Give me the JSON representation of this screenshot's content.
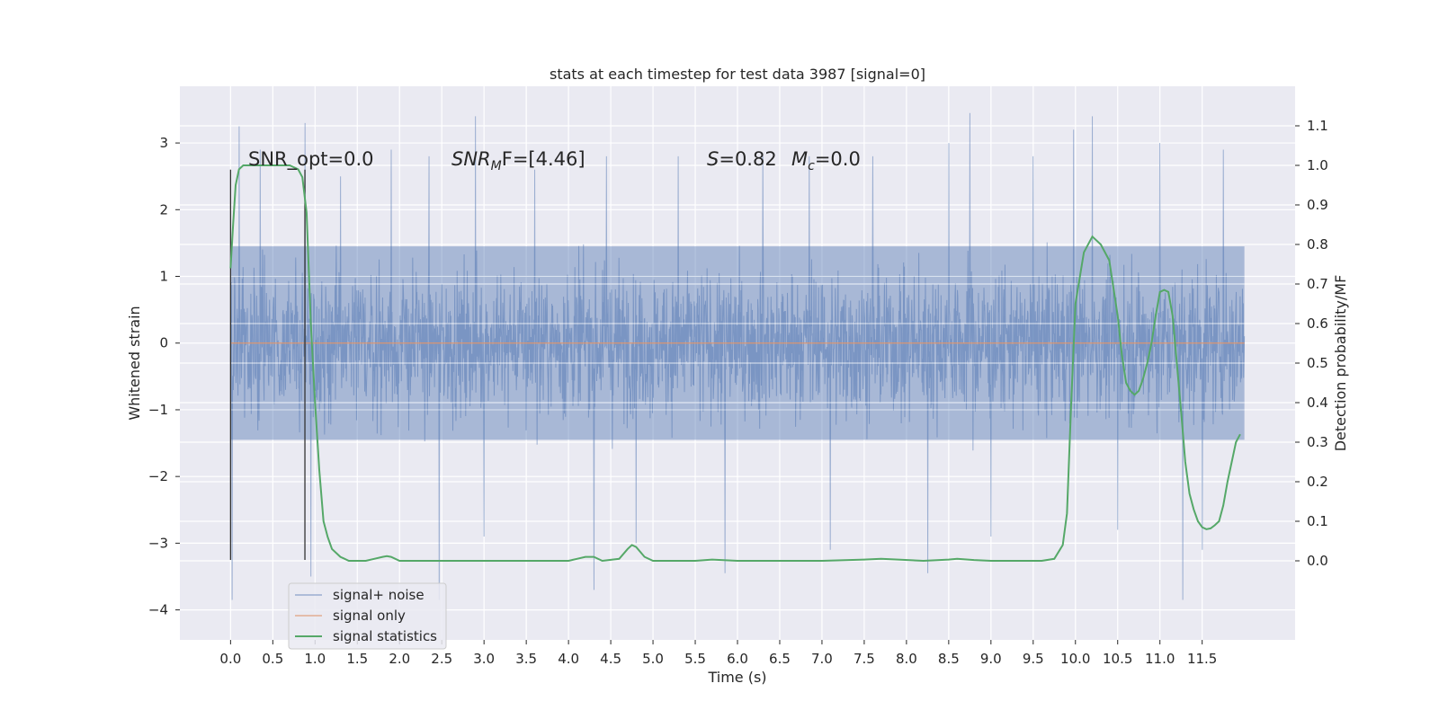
{
  "chart_data": {
    "type": "line",
    "title": "stats at each timestep for test data 3987 [signal=0]",
    "xlabel": "Time (s)",
    "ylabel": "Whitened strain",
    "ylabel_right": "Detection probability/MF",
    "xlim": [
      -0.6,
      12.6
    ],
    "ylim": [
      -4.45,
      3.85
    ],
    "ylim_right": [
      -0.2,
      1.2
    ],
    "x_ticks": [
      "0.0",
      "0.5",
      "1.0",
      "1.5",
      "2.0",
      "2.5",
      "3.0",
      "3.5",
      "4.0",
      "4.5",
      "5.0",
      "5.5",
      "6.0",
      "6.5",
      "7.0",
      "7.5",
      "8.0",
      "8.5",
      "9.0",
      "9.5",
      "10.0",
      "10.5",
      "11.0",
      "11.5"
    ],
    "y_ticks": [
      "3",
      "2",
      "1",
      "0",
      "−1",
      "−2",
      "−3",
      "−4"
    ],
    "y_ticks_right": [
      "1.1",
      "1.0",
      "0.9",
      "0.8",
      "0.7",
      "0.6",
      "0.5",
      "0.4",
      "0.3",
      "0.2",
      "0.1",
      "0.0"
    ],
    "annotations": {
      "snr_opt": "SNR_opt=0.0",
      "snr_mf_sym": "SNR",
      "snr_mf_sub": "M",
      "snr_mf_rest": "F=[4.46]",
      "s_sym": "S",
      "s_rest": "=0.82",
      "mc_sym": "M",
      "mc_sub": "c",
      "mc_rest": "=0.0"
    },
    "vlines_x": [
      0.0,
      0.88
    ],
    "series": [
      {
        "name": "signal+ noise",
        "color": "#4c72b0",
        "x_range": [
          0.0,
          12.0
        ],
        "typical_envelope": [
          -1.45,
          1.45
        ],
        "spikes": [
          {
            "x": 0.02,
            "v": -3.85
          },
          {
            "x": 0.1,
            "v": 3.25
          },
          {
            "x": 0.35,
            "v": 2.9
          },
          {
            "x": 0.88,
            "v": 3.3
          },
          {
            "x": 0.95,
            "v": -3.5
          },
          {
            "x": 1.3,
            "v": 2.5
          },
          {
            "x": 1.9,
            "v": 2.9
          },
          {
            "x": 2.35,
            "v": 2.8
          },
          {
            "x": 2.47,
            "v": -3.85
          },
          {
            "x": 2.9,
            "v": 3.4
          },
          {
            "x": 3.0,
            "v": -2.9
          },
          {
            "x": 3.6,
            "v": 2.6
          },
          {
            "x": 4.3,
            "v": -3.7
          },
          {
            "x": 4.45,
            "v": 2.8
          },
          {
            "x": 4.8,
            "v": -3.0
          },
          {
            "x": 5.3,
            "v": 2.8
          },
          {
            "x": 5.85,
            "v": -3.45
          },
          {
            "x": 6.3,
            "v": 2.8
          },
          {
            "x": 6.85,
            "v": 2.8
          },
          {
            "x": 7.1,
            "v": -3.1
          },
          {
            "x": 7.6,
            "v": 2.8
          },
          {
            "x": 8.25,
            "v": -3.45
          },
          {
            "x": 8.5,
            "v": 3.0
          },
          {
            "x": 8.75,
            "v": 3.45
          },
          {
            "x": 9.0,
            "v": -2.9
          },
          {
            "x": 9.5,
            "v": 2.8
          },
          {
            "x": 9.98,
            "v": 3.2
          },
          {
            "x": 10.2,
            "v": 3.4
          },
          {
            "x": 10.5,
            "v": -2.8
          },
          {
            "x": 11.0,
            "v": 3.0
          },
          {
            "x": 11.27,
            "v": -3.85
          },
          {
            "x": 11.5,
            "v": 3.1
          },
          {
            "x": 11.5,
            "v": -3.1
          },
          {
            "x": 11.75,
            "v": 2.9
          }
        ]
      },
      {
        "name": "signal only",
        "color": "#dd8452",
        "x": [
          0.0,
          12.0
        ],
        "y": [
          0.0,
          0.0
        ]
      },
      {
        "name": "signal statistics",
        "color": "#55a868",
        "axis": "right",
        "x": [
          0.0,
          0.03,
          0.06,
          0.1,
          0.15,
          0.2,
          0.3,
          0.5,
          0.7,
          0.8,
          0.85,
          0.9,
          0.95,
          1.0,
          1.05,
          1.1,
          1.15,
          1.2,
          1.3,
          1.4,
          1.5,
          1.6,
          1.7,
          1.8,
          1.85,
          1.9,
          2.0,
          2.2,
          2.5,
          3.0,
          3.5,
          4.0,
          4.1,
          4.2,
          4.3,
          4.4,
          4.6,
          4.7,
          4.75,
          4.8,
          4.9,
          5.0,
          5.2,
          5.5,
          5.7,
          6.0,
          6.5,
          7.0,
          7.5,
          7.7,
          7.9,
          8.2,
          8.5,
          8.6,
          8.8,
          9.0,
          9.3,
          9.6,
          9.75,
          9.85,
          9.9,
          9.95,
          10.0,
          10.1,
          10.2,
          10.3,
          10.4,
          10.5,
          10.55,
          10.6,
          10.65,
          10.7,
          10.75,
          10.8,
          10.85,
          10.9,
          10.95,
          11.0,
          11.05,
          11.1,
          11.15,
          11.2,
          11.25,
          11.3,
          11.35,
          11.4,
          11.45,
          11.5,
          11.55,
          11.6,
          11.65,
          11.7,
          11.75,
          11.8,
          11.85,
          11.9,
          11.95
        ],
        "y": [
          0.74,
          0.85,
          0.95,
          0.99,
          1.0,
          1.0,
          1.0,
          1.0,
          1.0,
          0.99,
          0.97,
          0.88,
          0.6,
          0.4,
          0.23,
          0.1,
          0.06,
          0.03,
          0.01,
          0.0,
          0.0,
          0.0,
          0.005,
          0.01,
          0.012,
          0.01,
          0.0,
          0.0,
          0.0,
          0.0,
          0.0,
          0.0,
          0.005,
          0.01,
          0.01,
          0.0,
          0.005,
          0.03,
          0.04,
          0.035,
          0.01,
          0.0,
          0.0,
          0.0,
          0.003,
          0.0,
          0.0,
          0.0,
          0.003,
          0.005,
          0.003,
          0.0,
          0.003,
          0.005,
          0.002,
          0.0,
          0.0,
          0.0,
          0.005,
          0.04,
          0.12,
          0.4,
          0.65,
          0.78,
          0.82,
          0.8,
          0.76,
          0.62,
          0.52,
          0.45,
          0.43,
          0.42,
          0.43,
          0.46,
          0.5,
          0.55,
          0.62,
          0.68,
          0.685,
          0.68,
          0.62,
          0.5,
          0.38,
          0.25,
          0.17,
          0.13,
          0.1,
          0.085,
          0.08,
          0.082,
          0.09,
          0.1,
          0.14,
          0.2,
          0.25,
          0.3,
          0.32
        ]
      }
    ],
    "legend_position": "lower-left",
    "grid": true
  }
}
